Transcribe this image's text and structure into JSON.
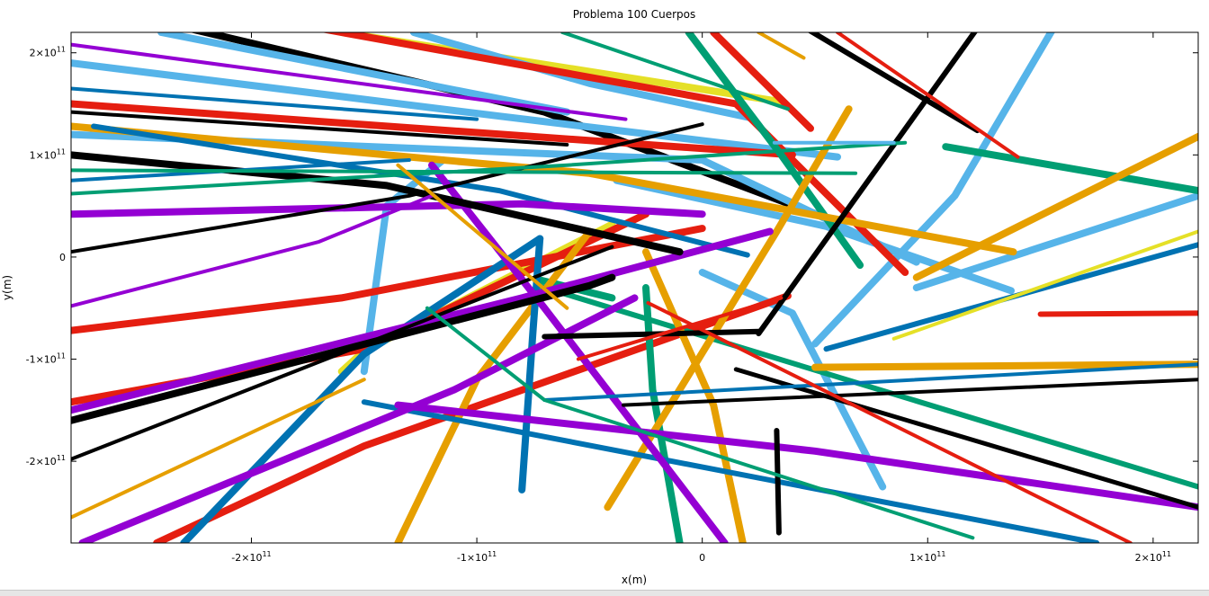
{
  "chart_data": {
    "type": "line",
    "title": "Problema 100 Cuerpos",
    "xlabel": "x(m)",
    "ylabel": "y(m)",
    "xlim": [
      -280000000000.0,
      220000000000.0
    ],
    "ylim": [
      -280000000000.0,
      220000000000.0
    ],
    "grid": false,
    "x_ticks": [
      {
        "value": -200000000000.0,
        "mant": "-2×10",
        "exp": "11"
      },
      {
        "value": -100000000000.0,
        "mant": "-1×10",
        "exp": "11"
      },
      {
        "value": 0,
        "mant": "0",
        "exp": ""
      },
      {
        "value": 100000000000.0,
        "mant": "1×10",
        "exp": "11"
      },
      {
        "value": 200000000000.0,
        "mant": "2×10",
        "exp": "11"
      }
    ],
    "y_ticks": [
      {
        "value": 200000000000.0,
        "mant": "2×10",
        "exp": "11"
      },
      {
        "value": 100000000000.0,
        "mant": "1×10",
        "exp": "11"
      },
      {
        "value": 0,
        "mant": "0",
        "exp": ""
      },
      {
        "value": -100000000000.0,
        "mant": "-1×10",
        "exp": "11"
      },
      {
        "value": -200000000000.0,
        "mant": "-2×10",
        "exp": "11"
      }
    ],
    "series": [
      {
        "color": "#000000",
        "width": 8,
        "x": [
          -228000000000.0,
          -70000000000.0,
          53000000000.0
        ],
        "y": [
          224000000000.0,
          142000000000.0,
          40000000000.0
        ]
      },
      {
        "color": "#e5e027",
        "width": 8,
        "x": [
          -160000000000.0,
          35000000000.0
        ],
        "y": [
          220000000000.0,
          152000000000.0
        ]
      },
      {
        "color": "#e5e027",
        "width": 8,
        "x": [
          -160000000000.0,
          -150000000000.0,
          -40000000000.0
        ],
        "y": [
          -112000000000.0,
          -92000000000.0,
          32000000000.0
        ]
      },
      {
        "color": "#56b4e9",
        "width": 8,
        "x": [
          -240000000000.0,
          -120000000000.0,
          -60000000000.0
        ],
        "y": [
          220000000000.0,
          168000000000.0,
          142000000000.0
        ]
      },
      {
        "color": "#56b4e9",
        "width": 8,
        "x": [
          -280000000000.0,
          -90000000000.0,
          60000000000.0
        ],
        "y": [
          190000000000.0,
          138000000000.0,
          98000000000.0
        ]
      },
      {
        "color": "#56b4e9",
        "width": 8,
        "x": [
          -128000000000.0,
          -50000000000.0,
          22000000000.0
        ],
        "y": [
          220000000000.0,
          170000000000.0,
          136000000000.0
        ]
      },
      {
        "color": "#56b4e9",
        "width": 8,
        "x": [
          -280000000000.0,
          0.0,
          95000000000.0
        ],
        "y": [
          120000000000.0,
          95000000000.0,
          -5000000000.0
        ]
      },
      {
        "color": "#56b4e9",
        "width": 8,
        "x": [
          -38000000000.0,
          55000000000.0,
          137000000000.0
        ],
        "y": [
          75000000000.0,
          30000000000.0,
          -33000000000.0
        ]
      },
      {
        "color": "#56b4e9",
        "width": 8,
        "x": [
          0.0,
          40000000000.0,
          80000000000.0
        ],
        "y": [
          -15000000000.0,
          -55000000000.0,
          -225000000000.0
        ]
      },
      {
        "color": "#56b4e9",
        "width": 8,
        "x": [
          -150000000000.0,
          -140000000000.0,
          -115000000000.0
        ],
        "y": [
          -112000000000.0,
          50000000000.0,
          95000000000.0
        ]
      },
      {
        "color": "#56b4e9",
        "width": 8,
        "x": [
          50000000000.0,
          112000000000.0,
          156000000000.0
        ],
        "y": [
          -85000000000.0,
          60000000000.0,
          225000000000.0
        ]
      },
      {
        "color": "#56b4e9",
        "width": 8,
        "x": [
          95000000000.0,
          220000000000.0
        ],
        "y": [
          -30000000000.0,
          60000000000.0
        ]
      },
      {
        "color": "#e51e10",
        "width": 8,
        "x": [
          -170000000000.0,
          15000000000.0,
          90000000000.0
        ],
        "y": [
          224000000000.0,
          150000000000.0,
          -15000000000.0
        ]
      },
      {
        "color": "#e51e10",
        "width": 8,
        "x": [
          -280000000000.0,
          40000000000.0
        ],
        "y": [
          150000000000.0,
          100000000000.0
        ]
      },
      {
        "color": "#e51e10",
        "width": 8,
        "x": [
          -280000000000.0,
          -160000000000.0,
          0.0
        ],
        "y": [
          -72000000000.0,
          -40000000000.0,
          28000000000.0
        ]
      },
      {
        "color": "#e51e10",
        "width": 8,
        "x": [
          -280000000000.0,
          -150000000000.0,
          -25000000000.0
        ],
        "y": [
          -142000000000.0,
          -90000000000.0,
          42000000000.0
        ]
      },
      {
        "color": "#e51e10",
        "width": 8,
        "x": [
          -242000000000.0,
          -150000000000.0,
          38000000000.0
        ],
        "y": [
          -280000000000.0,
          -185000000000.0,
          -38000000000.0
        ]
      },
      {
        "color": "#e51e10",
        "width": 8,
        "x": [
          5000000000.0,
          48000000000.0
        ],
        "y": [
          220000000000.0,
          126000000000.0
        ]
      },
      {
        "color": "#e51e10",
        "width": 6,
        "x": [
          150000000000.0,
          220000000000.0
        ],
        "y": [
          -56000000000.0,
          -55000000000.0
        ]
      },
      {
        "color": "#009e73",
        "width": 8,
        "x": [
          -6000000000.0,
          35000000000.0,
          70000000000.0
        ],
        "y": [
          220000000000.0,
          100000000000.0,
          -8000000000.0
        ]
      },
      {
        "color": "#009e73",
        "width": 8,
        "x": [
          108000000000.0,
          220000000000.0
        ],
        "y": [
          108000000000.0,
          65000000000.0
        ]
      },
      {
        "color": "#009e73",
        "width": 8,
        "x": [
          -73000000000.0,
          -40000000000.0
        ],
        "y": [
          -22000000000.0,
          -40000000000.0
        ]
      },
      {
        "color": "#009e73",
        "width": 8,
        "x": [
          -25000000000.0,
          -22000000000.0,
          -10000000000.0
        ],
        "y": [
          -30000000000.0,
          -130000000000.0,
          -280000000000.0
        ]
      },
      {
        "color": "#009e73",
        "width": 6,
        "x": [
          -73000000000.0,
          220000000000.0
        ],
        "y": [
          -28000000000.0,
          -225000000000.0
        ]
      },
      {
        "color": "#e69f00",
        "width": 8,
        "x": [
          -135000000000.0,
          -100000000000.0,
          -50000000000.0
        ],
        "y": [
          -280000000000.0,
          -120000000000.0,
          25000000000.0
        ]
      },
      {
        "color": "#e69f00",
        "width": 8,
        "x": [
          -42000000000.0,
          33000000000.0,
          65000000000.0
        ],
        "y": [
          -245000000000.0,
          25000000000.0,
          145000000000.0
        ]
      },
      {
        "color": "#e69f00",
        "width": 8,
        "x": [
          -25000000000.0,
          5000000000.0,
          18000000000.0
        ],
        "y": [
          5000000000.0,
          -145000000000.0,
          -280000000000.0
        ]
      },
      {
        "color": "#e69f00",
        "width": 8,
        "x": [
          -280000000000.0,
          -50000000000.0,
          138000000000.0
        ],
        "y": [
          128000000000.0,
          82000000000.0,
          5000000000.0
        ]
      },
      {
        "color": "#e69f00",
        "width": 8,
        "x": [
          95000000000.0,
          220000000000.0
        ],
        "y": [
          -20000000000.0,
          118000000000.0
        ]
      },
      {
        "color": "#e69f00",
        "width": 8,
        "x": [
          50000000000.0,
          220000000000.0
        ],
        "y": [
          -108000000000.0,
          -105000000000.0
        ]
      },
      {
        "color": "#0072b2",
        "width": 8,
        "x": [
          -80000000000.0,
          -75000000000.0,
          -72000000000.0
        ],
        "y": [
          -228000000000.0,
          -70000000000.0,
          18000000000.0
        ]
      },
      {
        "color": "#0072b2",
        "width": 8,
        "x": [
          -230000000000.0,
          -150000000000.0,
          -72000000000.0
        ],
        "y": [
          -280000000000.0,
          -95000000000.0,
          18000000000.0
        ]
      },
      {
        "color": "#0072b2",
        "width": 6,
        "x": [
          -270000000000.0,
          -90000000000.0,
          20000000000.0
        ],
        "y": [
          128000000000.0,
          65000000000.0,
          2000000000.0
        ]
      },
      {
        "color": "#0072b2",
        "width": 6,
        "x": [
          55000000000.0,
          220000000000.0
        ],
        "y": [
          -90000000000.0,
          12000000000.0
        ]
      },
      {
        "color": "#0072b2",
        "width": 6,
        "x": [
          -150000000000.0,
          175000000000.0
        ],
        "y": [
          -142000000000.0,
          -280000000000.0
        ]
      },
      {
        "color": "#9400d3",
        "width": 8,
        "x": [
          -280000000000.0,
          -80000000000.0,
          0.0
        ],
        "y": [
          42000000000.0,
          52000000000.0,
          42000000000.0
        ]
      },
      {
        "color": "#9400d3",
        "width": 8,
        "x": [
          -280000000000.0,
          -80000000000.0,
          30000000000.0
        ],
        "y": [
          -150000000000.0,
          -40000000000.0,
          25000000000.0
        ]
      },
      {
        "color": "#9400d3",
        "width": 8,
        "x": [
          -275000000000.0,
          -110000000000.0,
          -30000000000.0
        ],
        "y": [
          -280000000000.0,
          -130000000000.0,
          -40000000000.0
        ]
      },
      {
        "color": "#9400d3",
        "width": 8,
        "x": [
          -135000000000.0,
          50000000000.0,
          220000000000.0
        ],
        "y": [
          -145000000000.0,
          -190000000000.0,
          -245000000000.0
        ]
      },
      {
        "color": "#9400d3",
        "width": 8,
        "x": [
          -120000000000.0,
          -70000000000.0,
          10000000000.0
        ],
        "y": [
          90000000000.0,
          -50000000000.0,
          -280000000000.0
        ]
      },
      {
        "color": "#000000",
        "width": 8,
        "x": [
          -280000000000.0,
          -50000000000.0,
          -40000000000.0
        ],
        "y": [
          -160000000000.0,
          -28000000000.0,
          -20000000000.0
        ]
      },
      {
        "color": "#000000",
        "width": 8,
        "x": [
          -280000000000.0,
          -140000000000.0,
          -10000000000.0
        ],
        "y": [
          100000000000.0,
          70000000000.0,
          5000000000.0
        ]
      },
      {
        "color": "#000000",
        "width": 6,
        "x": [
          25000000000.0,
          122000000000.0
        ],
        "y": [
          -75000000000.0,
          224000000000.0
        ]
      },
      {
        "color": "#000000",
        "width": 6,
        "x": [
          46000000000.0,
          122000000000.0
        ],
        "y": [
          224000000000.0,
          124000000000.0
        ]
      },
      {
        "color": "#000000",
        "width": 6,
        "x": [
          -70000000000.0,
          25000000000.0
        ],
        "y": [
          -78000000000.0,
          -73000000000.0
        ]
      },
      {
        "color": "#000000",
        "width": 6,
        "x": [
          33000000000.0,
          34000000000.0
        ],
        "y": [
          -170000000000.0,
          -270000000000.0
        ]
      },
      {
        "color": "#000000",
        "width": 5,
        "x": [
          15000000000.0,
          220000000000.0
        ],
        "y": [
          -110000000000.0,
          -245000000000.0
        ]
      },
      {
        "color": "#000000",
        "width": 4,
        "x": [
          -280000000000.0,
          -60000000000.0
        ],
        "y": [
          142000000000.0,
          110000000000.0
        ]
      },
      {
        "color": "#000000",
        "width": 4,
        "x": [
          -280000000000.0,
          -130000000000.0,
          0.0
        ],
        "y": [
          5000000000.0,
          60000000000.0,
          130000000000.0
        ]
      },
      {
        "color": "#000000",
        "width": 4,
        "x": [
          -280000000000.0,
          -40000000000.0
        ],
        "y": [
          -198000000000.0,
          10000000000.0
        ]
      },
      {
        "color": "#000000",
        "width": 4,
        "x": [
          -35000000000.0,
          220000000000.0
        ],
        "y": [
          -145000000000.0,
          -120000000000.0
        ]
      },
      {
        "color": "#9400d3",
        "width": 4,
        "x": [
          -280000000000.0,
          -34000000000.0
        ],
        "y": [
          208000000000.0,
          135000000000.0
        ]
      },
      {
        "color": "#9400d3",
        "width": 4,
        "x": [
          -280000000000.0,
          -170000000000.0,
          -120000000000.0
        ],
        "y": [
          -48000000000.0,
          15000000000.0,
          60000000000.0
        ]
      },
      {
        "color": "#0072b2",
        "width": 4,
        "x": [
          -280000000000.0,
          -100000000000.0
        ],
        "y": [
          165000000000.0,
          135000000000.0
        ]
      },
      {
        "color": "#0072b2",
        "width": 4,
        "x": [
          -280000000000.0,
          -130000000000.0
        ],
        "y": [
          75000000000.0,
          95000000000.0
        ]
      },
      {
        "color": "#0072b2",
        "width": 4,
        "x": [
          -70000000000.0,
          220000000000.0
        ],
        "y": [
          -140000000000.0,
          -105000000000.0
        ]
      },
      {
        "color": "#009e73",
        "width": 4,
        "x": [
          -280000000000.0,
          68000000000.0
        ],
        "y": [
          85000000000.0,
          82000000000.0
        ]
      },
      {
        "color": "#009e73",
        "width": 4,
        "x": [
          -280000000000.0,
          -60000000000.0,
          90000000000.0
        ],
        "y": [
          62000000000.0,
          90000000000.0,
          112000000000.0
        ]
      },
      {
        "color": "#009e73",
        "width": 4,
        "x": [
          -62000000000.0,
          38000000000.0
        ],
        "y": [
          220000000000.0,
          145000000000.0
        ]
      },
      {
        "color": "#009e73",
        "width": 4,
        "x": [
          -122000000000.0,
          -70000000000.0,
          120000000000.0
        ],
        "y": [
          -50000000000.0,
          -140000000000.0,
          -275000000000.0
        ]
      },
      {
        "color": "#e51e10",
        "width": 4,
        "x": [
          60000000000.0,
          140000000000.0
        ],
        "y": [
          220000000000.0,
          98000000000.0
        ]
      },
      {
        "color": "#e51e10",
        "width": 4,
        "x": [
          -55000000000.0,
          35000000000.0
        ],
        "y": [
          -100000000000.0,
          -40000000000.0
        ]
      },
      {
        "color": "#e51e10",
        "width": 4,
        "x": [
          -24000000000.0,
          190000000000.0
        ],
        "y": [
          -45000000000.0,
          -280000000000.0
        ]
      },
      {
        "color": "#e69f00",
        "width": 4,
        "x": [
          -280000000000.0,
          -150000000000.0
        ],
        "y": [
          -255000000000.0,
          -120000000000.0
        ]
      },
      {
        "color": "#e69f00",
        "width": 4,
        "x": [
          -135000000000.0,
          -60000000000.0
        ],
        "y": [
          90000000000.0,
          -50000000000.0
        ]
      },
      {
        "color": "#e69f00",
        "width": 4,
        "x": [
          25000000000.0,
          45000000000.0
        ],
        "y": [
          220000000000.0,
          195000000000.0
        ]
      },
      {
        "color": "#e5e027",
        "width": 4,
        "x": [
          85000000000.0,
          220000000000.0
        ],
        "y": [
          -80000000000.0,
          25000000000.0
        ]
      },
      {
        "color": "#56b4e9",
        "width": 4,
        "x": [
          32000000000.0,
          85000000000.0
        ],
        "y": [
          112000000000.0,
          112000000000.0
        ]
      }
    ]
  },
  "colors": {
    "background": "#ffffff",
    "axis": "#000000"
  }
}
